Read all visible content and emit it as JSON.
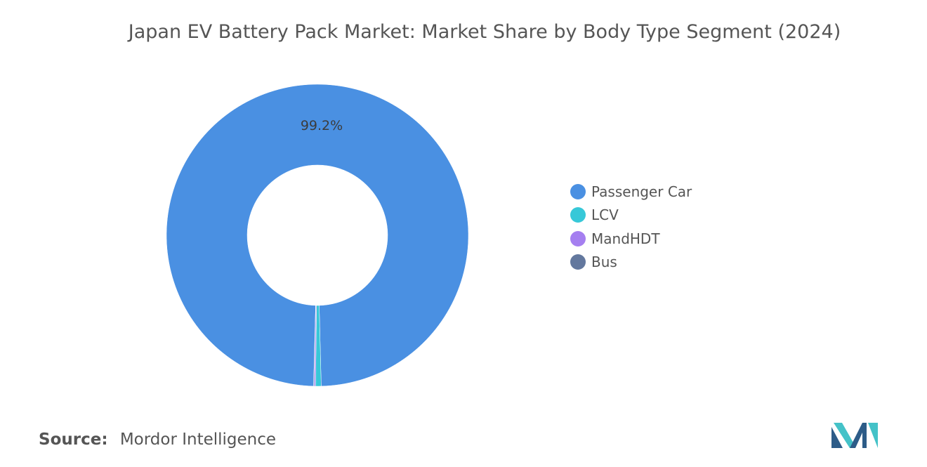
{
  "chart_data": {
    "type": "pie",
    "title": "Japan EV Battery Pack Market: Market Share by Body Type Segment (2024)",
    "categories": [
      "Passenger Car",
      "LCV",
      "MandHDT",
      "Bus"
    ],
    "values": [
      99.2,
      0.6,
      0.15,
      0.05
    ],
    "unit": "%",
    "data_labels": [
      "99.2%",
      "",
      "",
      ""
    ],
    "colors": [
      "#4a90e2",
      "#37c8d8",
      "#a57ff0",
      "#63789e"
    ],
    "donut": true,
    "legend_position": "right"
  },
  "source": {
    "label": "Source:",
    "value": "Mordor Intelligence"
  },
  "logo": {
    "name": "mordor-intelligence-logo",
    "colors": [
      "#2d5c88",
      "#44c2c8"
    ]
  }
}
